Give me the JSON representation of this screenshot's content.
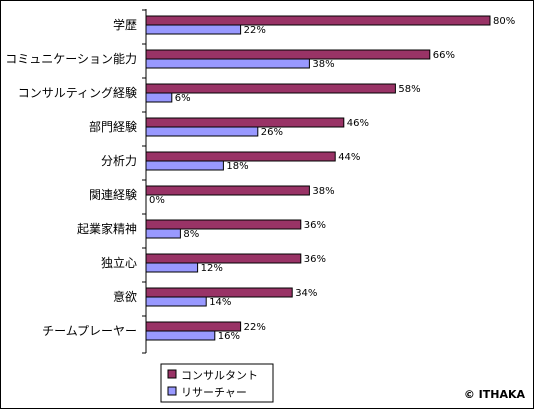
{
  "chart_data": {
    "type": "bar",
    "orientation": "horizontal",
    "categories": [
      "学歴",
      "コミュニケーション能力",
      "コンサルティング経験",
      "部門経験",
      "分析力",
      "関連経験",
      "起業家精神",
      "独立心",
      "意欲",
      "チームプレーヤー"
    ],
    "series": [
      {
        "name": "コンサルタント",
        "values": [
          80,
          66,
          58,
          46,
          44,
          38,
          36,
          36,
          34,
          22
        ],
        "color": "#993366"
      },
      {
        "name": "リサーチャー",
        "values": [
          22,
          38,
          6,
          26,
          18,
          0,
          8,
          12,
          14,
          16
        ],
        "color": "#9999FF"
      }
    ],
    "value_suffix": "%",
    "xlim": [
      0,
      100
    ],
    "grid": false,
    "legend_position": "bottom-right",
    "title": "",
    "xlabel": "",
    "ylabel": ""
  },
  "copyright": "© ITHAKA"
}
